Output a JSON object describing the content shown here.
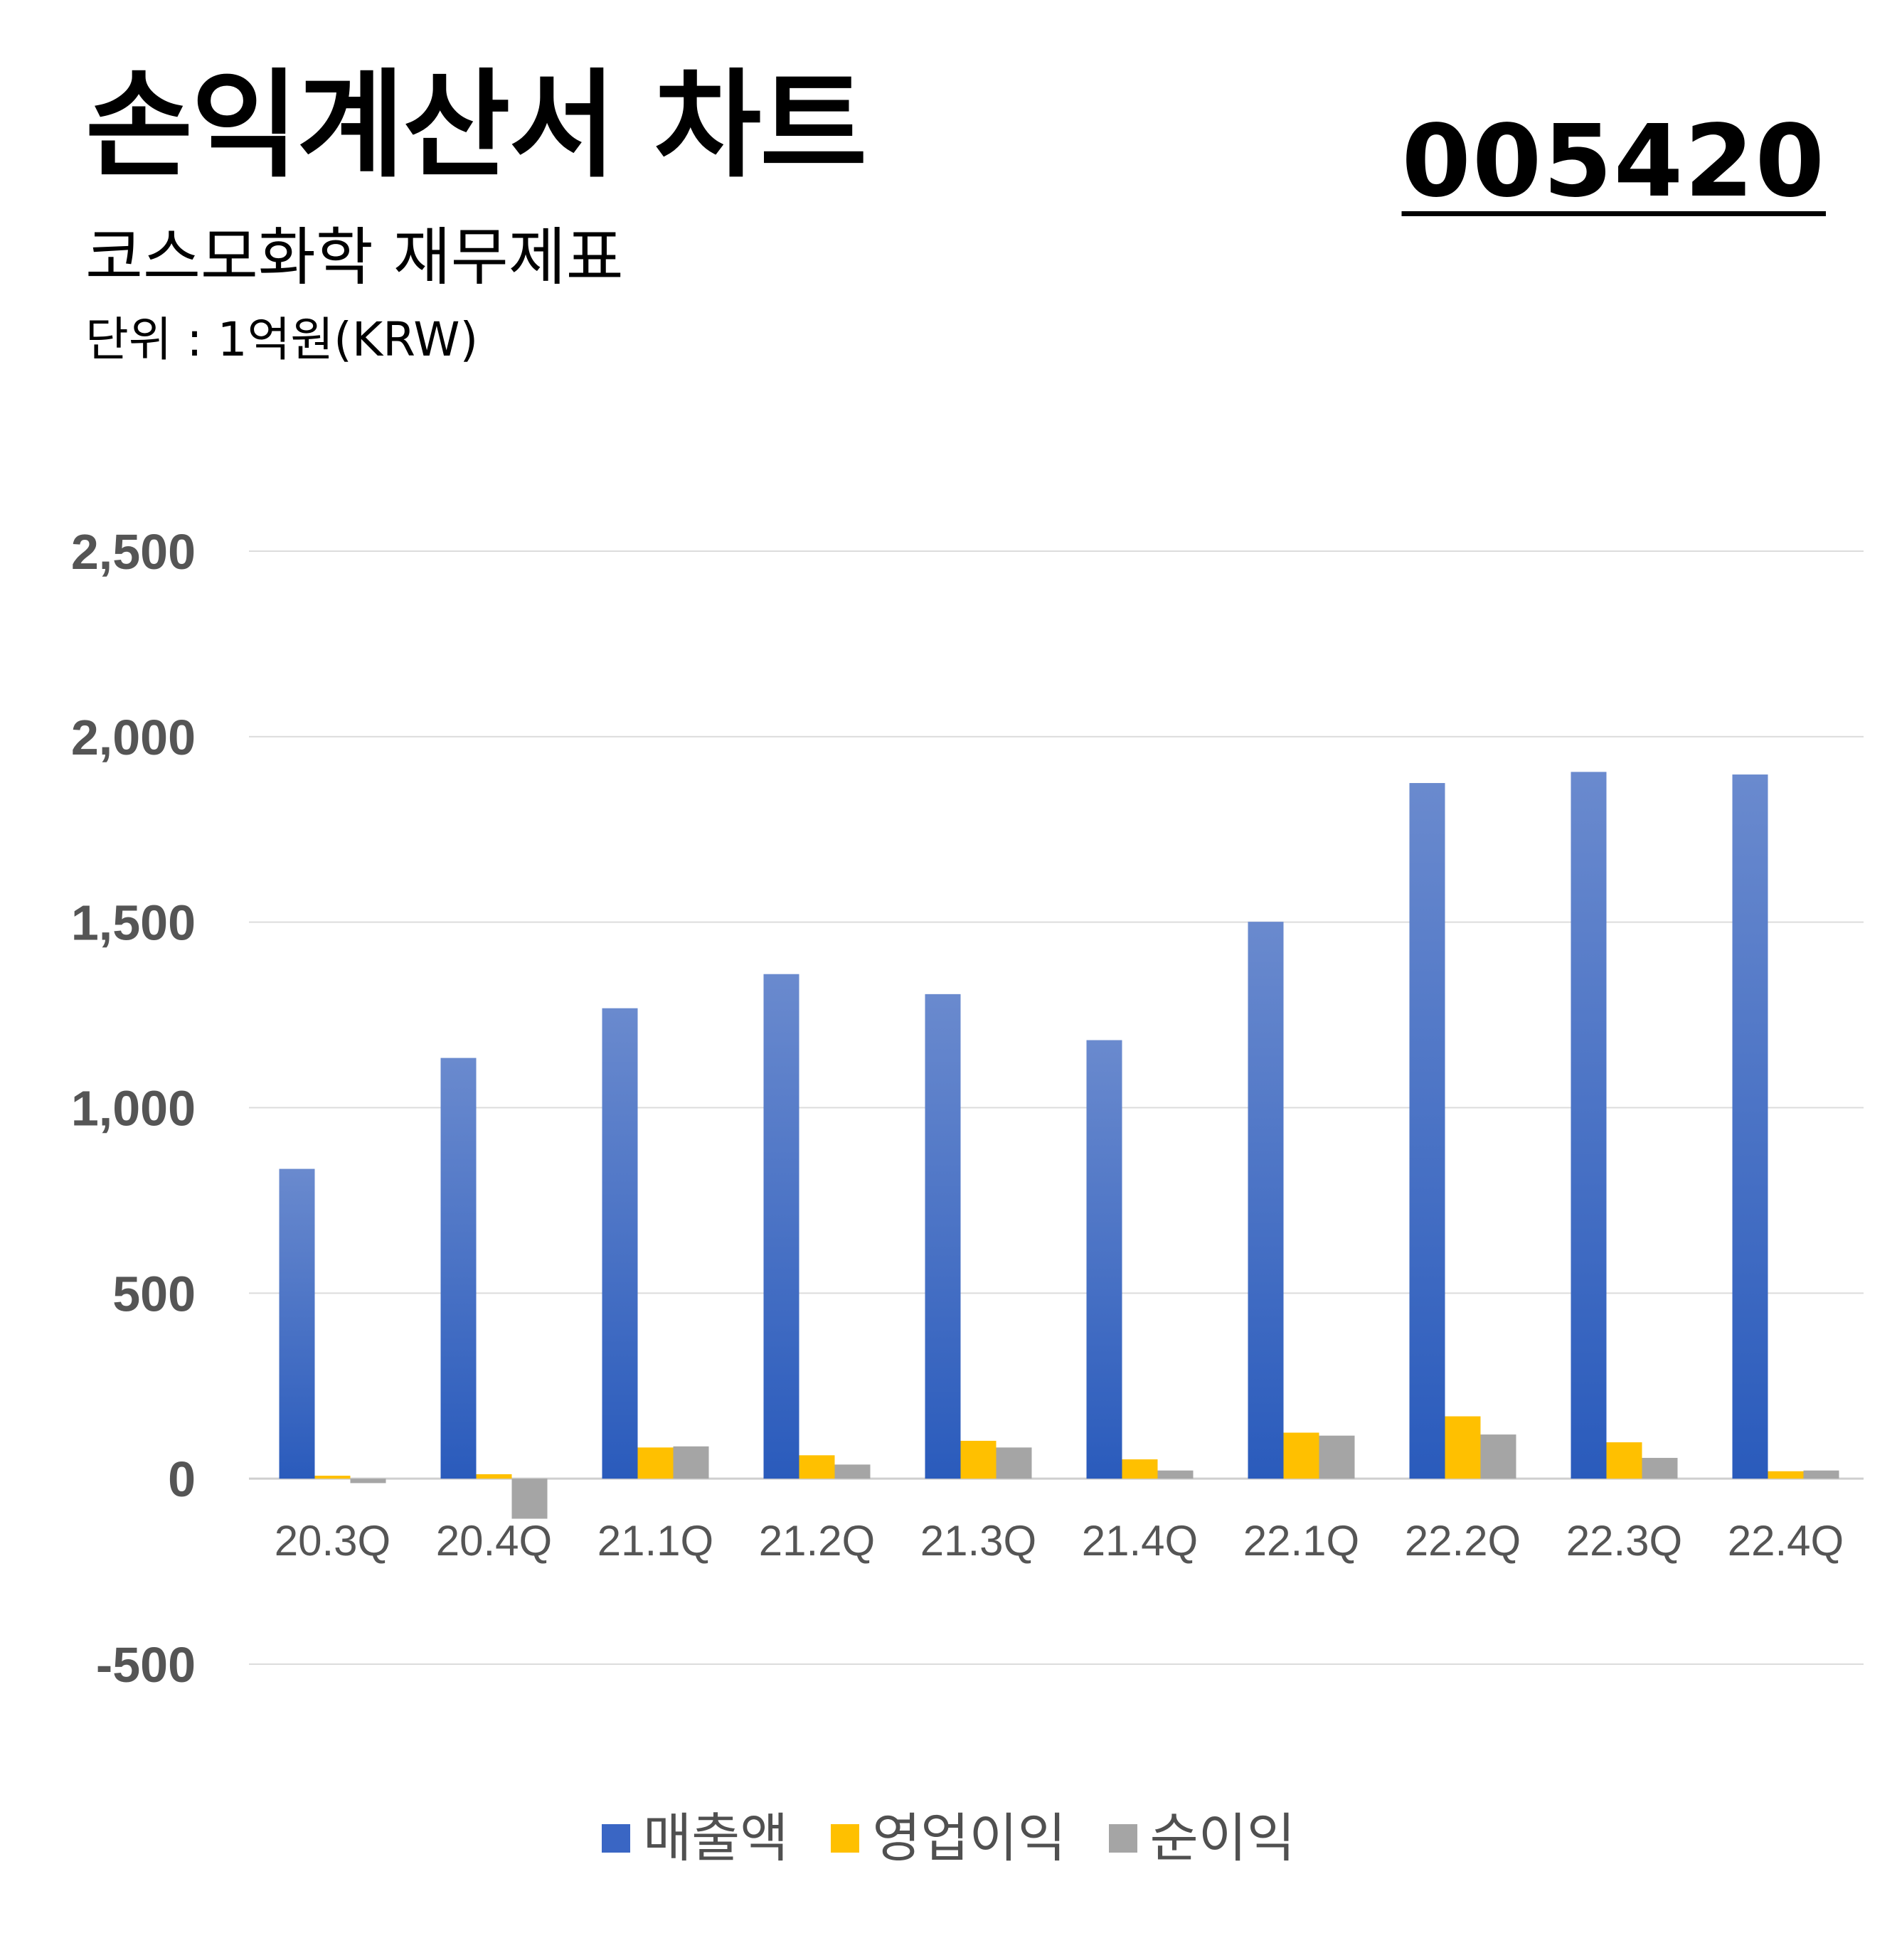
{
  "header": {
    "title": "손익계산서 차트",
    "subtitle": "코스모화학 재무제표",
    "unit": "단위 : 1억원(KRW)",
    "code": "005420"
  },
  "legend": [
    {
      "label": "매출액",
      "color": "#3A66C4"
    },
    {
      "label": "영업이익",
      "color": "#FFC000"
    },
    {
      "label": "순이익",
      "color": "#A5A5A5"
    }
  ],
  "chart_data": {
    "type": "bar",
    "categories": [
      "20.3Q",
      "20.4Q",
      "21.1Q",
      "21.2Q",
      "21.3Q",
      "21.4Q",
      "22.1Q",
      "22.2Q",
      "22.3Q",
      "22.4Q"
    ],
    "series": [
      {
        "name": "매출액",
        "color": "#3A66C4",
        "values": [
          835,
          1134,
          1268,
          1360,
          1306,
          1182,
          1501,
          1875,
          1905,
          1898
        ]
      },
      {
        "name": "영업이익",
        "color": "#FFC000",
        "values": [
          8,
          12,
          84,
          63,
          102,
          52,
          124,
          168,
          98,
          20
        ]
      },
      {
        "name": "순이익",
        "color": "#A5A5A5",
        "values": [
          -12,
          -108,
          87,
          38,
          84,
          22,
          116,
          119,
          56,
          22
        ]
      }
    ],
    "yticks": [
      -500,
      0,
      500,
      1000,
      1500,
      2000,
      2500
    ],
    "ytick_labels": [
      "-500",
      "0",
      "500",
      "1,000",
      "1,500",
      "2,000",
      "2,500"
    ],
    "ylim": [
      -500,
      2500
    ],
    "grid": true,
    "legend_position": "bottom"
  }
}
